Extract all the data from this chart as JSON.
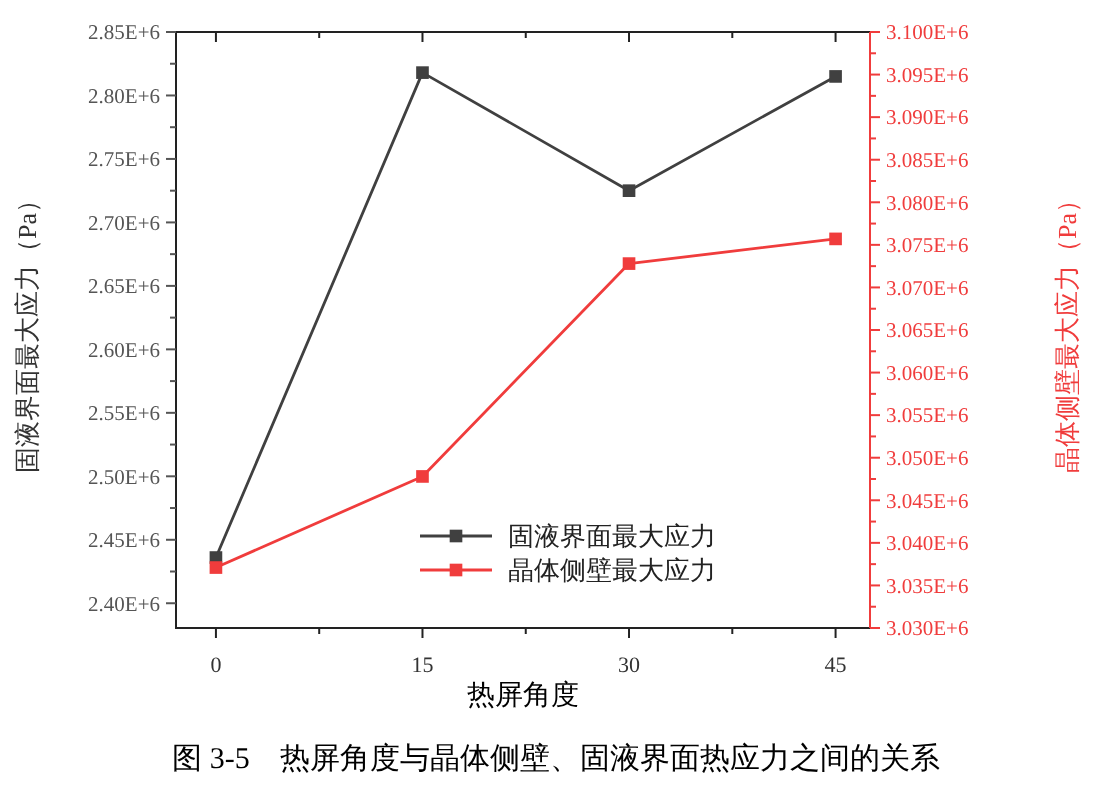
{
  "chart_data": {
    "type": "line",
    "xlabel": "热屏角度",
    "ylabel": "固液界面最大应力（Pa）",
    "y2label": "晶体侧壁最大应力（Pa）",
    "x": [
      0,
      15,
      30,
      45
    ],
    "series": [
      {
        "name": "固液界面最大应力",
        "color": "#404040",
        "values": [
          2436000,
          2818000,
          2725000,
          2815000
        ]
      },
      {
        "name": "晶体侧壁最大应力",
        "color": "#f03c3c",
        "axis": "y2",
        "values": [
          3037100,
          3047800,
          3072800,
          3075700
        ]
      }
    ],
    "xlim": [
      -2.9,
      47.5
    ],
    "xticks": [
      0,
      {
        "value": 7.5,
        "label": null
      },
      15,
      {
        "value": 22.5,
        "label": null
      },
      30,
      {
        "value": 37.5,
        "label": null
      },
      45
    ],
    "ylim": [
      2380500,
      2850000
    ],
    "yticks": [
      {
        "value": 2400000,
        "label": "2.40E+6"
      },
      {
        "value": 2425000,
        "label": null
      },
      {
        "value": 2450000,
        "label": "2.45E+6"
      },
      {
        "value": 2475000,
        "label": null
      },
      {
        "value": 2500000,
        "label": "2.50E+6"
      },
      {
        "value": 2525000,
        "label": null
      },
      {
        "value": 2550000,
        "label": "2.55E+6"
      },
      {
        "value": 2575000,
        "label": null
      },
      {
        "value": 2600000,
        "label": "2.60E+6"
      },
      {
        "value": 2625000,
        "label": null
      },
      {
        "value": 2650000,
        "label": "2.65E+6"
      },
      {
        "value": 2675000,
        "label": null
      },
      {
        "value": 2700000,
        "label": "2.70E+6"
      },
      {
        "value": 2725000,
        "label": null
      },
      {
        "value": 2750000,
        "label": "2.75E+6"
      },
      {
        "value": 2775000,
        "label": null
      },
      {
        "value": 2800000,
        "label": "2.80E+6"
      },
      {
        "value": 2825000,
        "label": null
      },
      {
        "value": 2850000,
        "label": "2.85E+6"
      }
    ],
    "y2lim": [
      3030000,
      3100000
    ],
    "y2ticks": [
      {
        "value": 3030000,
        "label": "3.030E+6"
      },
      {
        "value": 3032500,
        "label": null
      },
      {
        "value": 3035000,
        "label": "3.035E+6"
      },
      {
        "value": 3037500,
        "label": null
      },
      {
        "value": 3040000,
        "label": "3.040E+6"
      },
      {
        "value": 3042500,
        "label": null
      },
      {
        "value": 3045000,
        "label": "3.045E+6"
      },
      {
        "value": 3047500,
        "label": null
      },
      {
        "value": 3050000,
        "label": "3.050E+6"
      },
      {
        "value": 3052500,
        "label": null
      },
      {
        "value": 3055000,
        "label": "3.055E+6"
      },
      {
        "value": 3057500,
        "label": null
      },
      {
        "value": 3060000,
        "label": "3.060E+6"
      },
      {
        "value": 3062500,
        "label": null
      },
      {
        "value": 3065000,
        "label": "3.065E+6"
      },
      {
        "value": 3067500,
        "label": null
      },
      {
        "value": 3070000,
        "label": "3.070E+6"
      },
      {
        "value": 3072500,
        "label": null
      },
      {
        "value": 3075000,
        "label": "3.075E+6"
      },
      {
        "value": 3077500,
        "label": null
      },
      {
        "value": 3080000,
        "label": "3.080E+6"
      },
      {
        "value": 3082500,
        "label": null
      },
      {
        "value": 3085000,
        "label": "3.085E+6"
      },
      {
        "value": 3087500,
        "label": null
      },
      {
        "value": 3090000,
        "label": "3.090E+6"
      },
      {
        "value": 3092500,
        "label": null
      },
      {
        "value": 3095000,
        "label": "3.095E+6"
      },
      {
        "value": 3097500,
        "label": null
      },
      {
        "value": 3100000,
        "label": "3.100E+6"
      }
    ],
    "marker": "square",
    "line_style": "solid",
    "legend": "bottom",
    "grid": false,
    "annotations": [
      "图 3-5　热屏角度与晶体侧壁、固液界面热应力之间的关系"
    ]
  }
}
